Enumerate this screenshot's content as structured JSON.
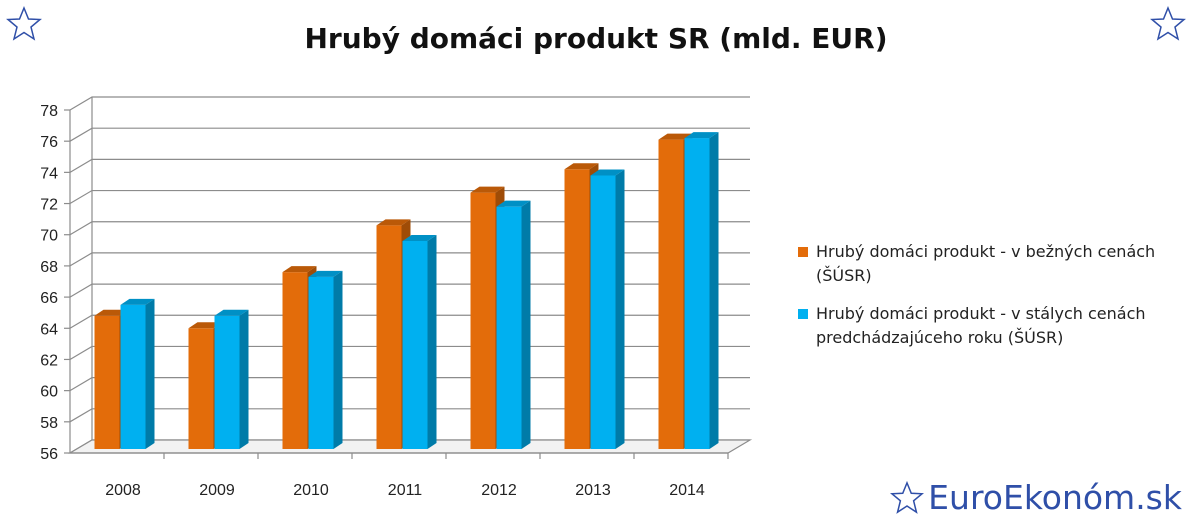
{
  "chart_data": {
    "type": "bar",
    "title": "Hrubý domáci produkt SR (mld. EUR)",
    "categories": [
      "2008",
      "2009",
      "2010",
      "2011",
      "2012",
      "2013",
      "2014"
    ],
    "series": [
      {
        "name": "Hrubý domáci produkt - v bežných cenách (ŠÚSR)",
        "color": "#e36c0a",
        "values": [
          64.8,
          64.0,
          67.6,
          70.6,
          72.7,
          74.2,
          76.1
        ]
      },
      {
        "name": "Hrubý domáci produkt - v stálych cenách predchádzajúceho roku (ŠÚSR)",
        "color": "#00b0f0",
        "values": [
          65.5,
          64.8,
          67.3,
          69.6,
          71.8,
          73.8,
          76.2
        ]
      }
    ],
    "yticks": [
      56,
      58,
      60,
      62,
      64,
      66,
      68,
      70,
      72,
      74,
      76,
      78
    ],
    "ylim": [
      56,
      78
    ],
    "grid": true,
    "legend": "right",
    "style": "3d-clustered"
  },
  "brand": {
    "text": "EuroEkonóm.sk",
    "color": "#2f4fa8",
    "icon": "star-outline-icon"
  },
  "decorations": {
    "corner_icon": "star-outline-icon"
  }
}
